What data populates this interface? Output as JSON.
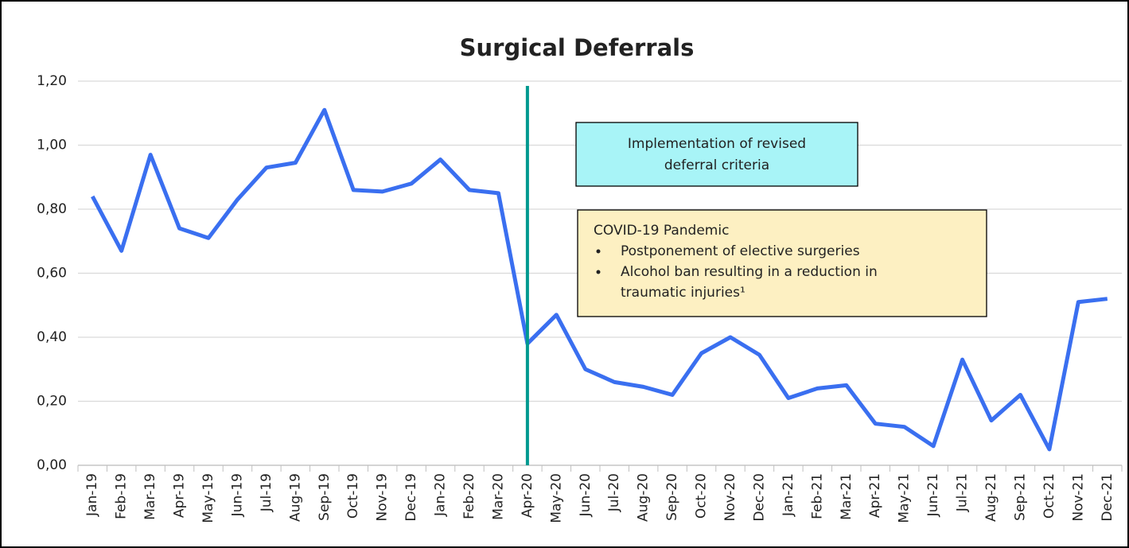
{
  "chart_data": {
    "type": "line",
    "title": "Surgical Deferrals",
    "categories": [
      "Jan-19",
      "Feb-19",
      "Mar-19",
      "Apr-19",
      "May-19",
      "Jun-19",
      "Jul-19",
      "Aug-19",
      "Sep-19",
      "Oct-19",
      "Nov-19",
      "Dec-19",
      "Jan-20",
      "Feb-20",
      "Mar-20",
      "Apr-20",
      "May-20",
      "Jun-20",
      "Jul-20",
      "Aug-20",
      "Sep-20",
      "Oct-20",
      "Nov-20",
      "Dec-20",
      "Jan-21",
      "Feb-21",
      "Mar-21",
      "Apr-21",
      "May-21",
      "Jun-21",
      "Jul-21",
      "Aug-21",
      "Sep-21",
      "Oct-21",
      "Nov-21",
      "Dec-21"
    ],
    "series": [
      {
        "color": "#3a6ff0",
        "values": [
          0.84,
          0.67,
          0.97,
          0.74,
          0.71,
          0.83,
          0.93,
          0.945,
          1.11,
          0.86,
          0.855,
          0.88,
          0.955,
          0.86,
          0.85,
          0.38,
          0.47,
          0.3,
          0.26,
          0.245,
          0.22,
          0.35,
          0.4,
          0.345,
          0.21,
          0.24,
          0.25,
          0.13,
          0.12,
          0.06,
          0.33,
          0.14,
          0.22,
          0.05,
          0.51,
          0.52
        ]
      }
    ],
    "ylim": [
      0,
      1.2
    ],
    "yticks": [
      {
        "value": 0,
        "label": "0,00"
      },
      {
        "value": 0.2,
        "label": "0,20"
      },
      {
        "value": 0.4,
        "label": "0,40"
      },
      {
        "value": 0.6,
        "label": "0,60"
      },
      {
        "value": 0.8,
        "label": "0,80"
      },
      {
        "value": 1.0,
        "label": "1,00"
      },
      {
        "value": 1.2,
        "label": "1,20"
      }
    ],
    "grid": true,
    "vline": {
      "category": "Apr-20",
      "color": "#009990"
    },
    "annotations": [
      {
        "lines": [
          "Implementation of revised",
          "deferral criteria"
        ],
        "color": "#a8f4f7"
      },
      {
        "lines": [
          "COVID-19 Pandemic"
        ],
        "bullets": [
          "Postponement of elective surgeries",
          "Alcohol ban resulting in a reduction in",
          "traumatic injuries¹"
        ],
        "color": "#fdf0c2"
      }
    ]
  }
}
